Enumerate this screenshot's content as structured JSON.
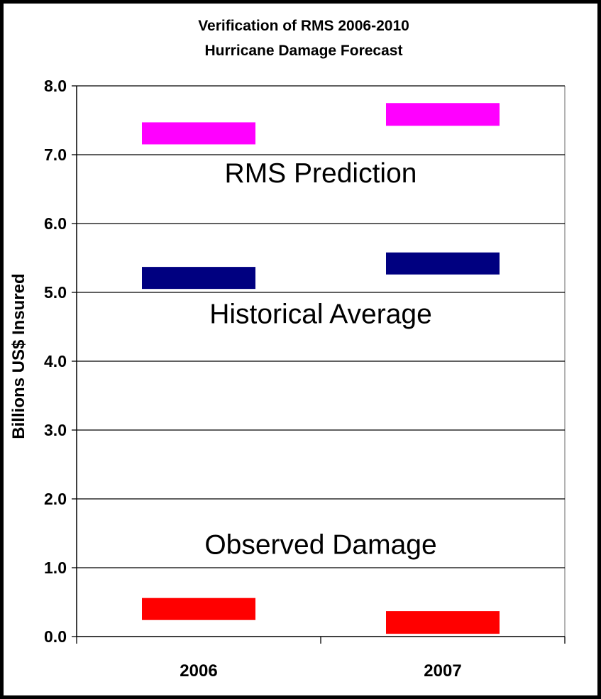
{
  "chart_data": {
    "type": "range-bar",
    "title": "Verification of RMS 2006-2010",
    "subtitle": "Hurricane Damage Forecast",
    "xlabel": "",
    "ylabel": "Billions US$ Insured",
    "ylim": [
      0,
      8
    ],
    "yticks": [
      "0.0",
      "1.0",
      "2.0",
      "3.0",
      "4.0",
      "5.0",
      "6.0",
      "7.0",
      "8.0"
    ],
    "categories": [
      "2006",
      "2007"
    ],
    "grid": true,
    "legend": "none",
    "series": [
      {
        "color": "#ff00ff",
        "ranges": [
          [
            7.15,
            7.47
          ],
          [
            7.42,
            7.75
          ]
        ]
      },
      {
        "color": "#000080",
        "ranges": [
          [
            5.05,
            5.37
          ],
          [
            5.26,
            5.58
          ]
        ]
      },
      {
        "color": "#ff0000",
        "ranges": [
          [
            0.24,
            0.56
          ],
          [
            0.04,
            0.37
          ]
        ]
      }
    ],
    "annotations": [
      {
        "text": "RMS Prediction",
        "y": 6.6
      },
      {
        "text": "Historical Average",
        "y": 4.55
      },
      {
        "text": "Observed Damage",
        "y": 1.2
      }
    ]
  }
}
